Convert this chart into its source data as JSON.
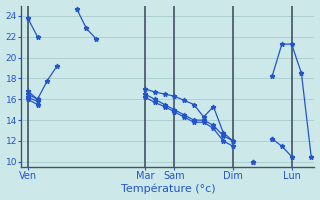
{
  "background_color": "#cce8e8",
  "grid_color": "#aacccc",
  "line_color": "#2255cc",
  "dark_vline_color": "#334466",
  "xlabel": "Température (°c)",
  "x_ticks_labels": [
    "Ven",
    "Mar",
    "Sam",
    "Dim",
    "Lun"
  ],
  "x_ticks_pos": [
    0,
    36,
    45,
    63,
    81
  ],
  "ylim": [
    9.5,
    25.0
  ],
  "yticks": [
    10,
    12,
    14,
    16,
    18,
    20,
    22,
    24
  ],
  "xlim": [
    -2,
    88
  ],
  "total_points": 90,
  "dark_vlines": [
    0,
    36,
    45,
    63,
    81
  ],
  "line1_x": [
    0,
    3,
    6,
    9,
    12,
    15,
    18,
    21,
    24,
    27,
    30,
    33,
    36,
    39,
    42,
    45,
    48,
    51,
    54,
    57,
    60,
    63,
    66,
    69,
    72,
    75,
    78,
    81,
    84,
    87
  ],
  "line1_y": [
    23.8,
    22.0,
    null,
    null,
    null,
    null,
    null,
    null,
    null,
    null,
    null,
    null,
    null,
    null,
    null,
    null,
    null,
    null,
    null,
    null,
    null,
    null,
    null,
    null,
    null,
    null,
    null,
    null,
    null,
    null
  ],
  "line2_x": [
    0,
    3,
    6,
    9,
    12,
    15,
    18,
    21,
    24,
    27,
    30,
    33,
    36,
    39,
    42,
    45,
    48,
    51,
    54,
    57,
    60,
    63,
    66,
    69,
    72,
    75,
    78,
    81,
    84,
    87
  ],
  "line2_y": [
    16.8,
    16.0,
    17.8,
    19.2,
    null,
    24.7,
    22.8,
    21.8,
    null,
    null,
    null,
    null,
    null,
    null,
    null,
    null,
    null,
    null,
    null,
    null,
    null,
    null,
    null,
    null,
    null,
    null,
    null,
    null,
    null,
    null
  ],
  "line3_x": [
    0,
    3,
    6,
    9,
    12,
    15,
    18,
    21,
    24,
    27,
    30,
    33,
    36,
    39,
    42,
    45,
    48,
    51,
    54,
    57,
    60,
    63,
    66,
    69,
    72,
    75,
    78,
    81,
    84,
    87
  ],
  "line3_y": [
    16.5,
    16.0,
    null,
    null,
    null,
    null,
    null,
    null,
    null,
    null,
    null,
    null,
    17.0,
    16.7,
    16.5,
    16.3,
    15.9,
    15.5,
    14.3,
    15.3,
    12.8,
    12.0,
    null,
    null,
    null,
    12.2,
    null,
    null,
    null,
    null
  ],
  "line4_x": [
    0,
    3,
    6,
    9,
    12,
    15,
    18,
    21,
    24,
    27,
    30,
    33,
    36,
    39,
    42,
    45,
    48,
    51,
    54,
    57,
    60,
    63,
    66,
    69,
    72,
    75,
    78,
    81,
    84,
    87
  ],
  "line4_y": [
    16.2,
    15.8,
    null,
    null,
    null,
    null,
    null,
    null,
    null,
    null,
    null,
    null,
    16.5,
    16.0,
    15.5,
    15.0,
    14.5,
    14.0,
    14.0,
    13.5,
    12.5,
    12.0,
    null,
    10.0,
    null,
    12.2,
    11.5,
    10.5,
    null,
    null
  ],
  "line5_x": [
    0,
    3,
    6,
    9,
    12,
    15,
    18,
    21,
    24,
    27,
    30,
    33,
    36,
    39,
    42,
    45,
    48,
    51,
    54,
    57,
    60,
    63,
    66,
    69,
    72,
    75,
    78,
    81,
    84,
    87
  ],
  "line5_y": [
    16.0,
    15.5,
    null,
    null,
    null,
    null,
    null,
    null,
    null,
    null,
    null,
    null,
    16.2,
    15.7,
    15.3,
    14.8,
    14.3,
    13.8,
    13.8,
    13.2,
    12.0,
    11.5,
    null,
    10.0,
    null,
    18.2,
    21.3,
    21.3,
    18.5,
    10.5
  ]
}
